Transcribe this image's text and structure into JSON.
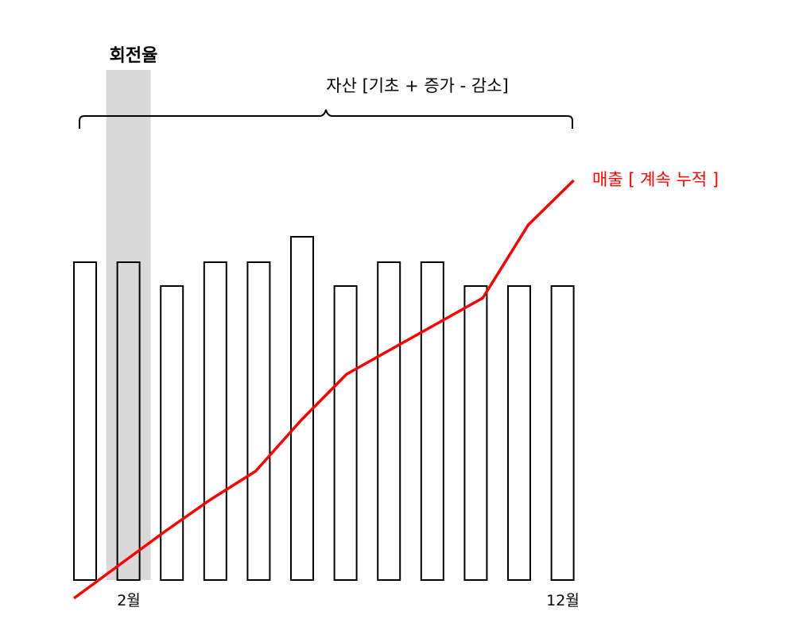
{
  "highlight": {
    "label": "회전율",
    "fill_color": "#d9d9d9",
    "bar_index": 1
  },
  "asset_bracket": {
    "label": "자산 [기초 + 증가 - 감소]"
  },
  "sales_line": {
    "label": "매출 [ 계속 누적 ]",
    "color": "#ff0000"
  },
  "month_labels": {
    "first": "2월",
    "last": "12월"
  },
  "chart_data": {
    "type": "bar",
    "series": [
      {
        "name": "자산 [기초 + 증가 - 감소]",
        "type": "bar",
        "values": [
          10,
          10,
          9.25,
          10,
          10,
          10.8,
          9.25,
          10,
          10,
          9.25,
          9.25,
          9.25
        ]
      },
      {
        "name": "매출 [ 계속 누적 ]",
        "type": "line",
        "values": [
          0,
          1.05,
          2.1,
          3.1,
          4.0,
          5.6,
          7.05,
          7.85,
          8.65,
          9.45,
          11.75,
          13.15
        ]
      }
    ],
    "x_labels": [
      "2월",
      "12월"
    ],
    "ylim": [
      0,
      13.3
    ]
  }
}
